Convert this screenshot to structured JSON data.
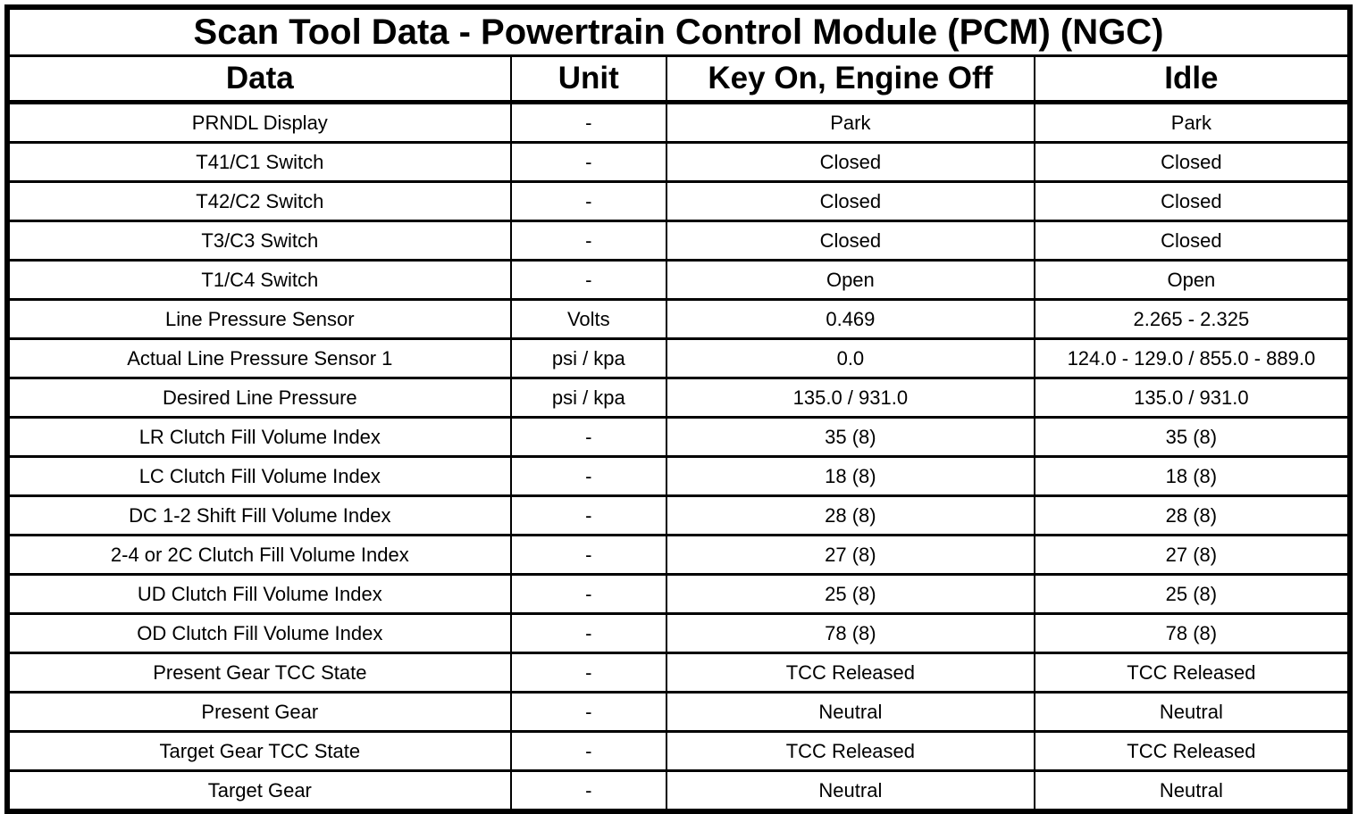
{
  "title": "Scan Tool Data - Powertrain Control Module (PCM) (NGC)",
  "columns": [
    "Data",
    "Unit",
    "Key On, Engine Off",
    "Idle"
  ],
  "rows": [
    {
      "data": "PRNDL Display",
      "unit": "-",
      "key_on_engine_off": "Park",
      "idle": "Park"
    },
    {
      "data": "T41/C1 Switch",
      "unit": "-",
      "key_on_engine_off": "Closed",
      "idle": "Closed"
    },
    {
      "data": "T42/C2 Switch",
      "unit": "-",
      "key_on_engine_off": "Closed",
      "idle": "Closed"
    },
    {
      "data": "T3/C3 Switch",
      "unit": "-",
      "key_on_engine_off": "Closed",
      "idle": "Closed"
    },
    {
      "data": "T1/C4 Switch",
      "unit": "-",
      "key_on_engine_off": "Open",
      "idle": "Open"
    },
    {
      "data": "Line Pressure Sensor",
      "unit": "Volts",
      "key_on_engine_off": "0.469",
      "idle": "2.265 - 2.325"
    },
    {
      "data": "Actual Line Pressure Sensor 1",
      "unit": "psi / kpa",
      "key_on_engine_off": "0.0",
      "idle": "124.0 - 129.0 / 855.0 - 889.0"
    },
    {
      "data": "Desired Line Pressure",
      "unit": "psi / kpa",
      "key_on_engine_off": "135.0 / 931.0",
      "idle": "135.0 / 931.0"
    },
    {
      "data": "LR Clutch Fill Volume Index",
      "unit": "-",
      "key_on_engine_off": "35 (8)",
      "idle": "35 (8)"
    },
    {
      "data": "LC Clutch Fill Volume Index",
      "unit": "-",
      "key_on_engine_off": "18 (8)",
      "idle": "18 (8)"
    },
    {
      "data": "DC 1-2 Shift Fill Volume Index",
      "unit": "-",
      "key_on_engine_off": "28 (8)",
      "idle": "28 (8)"
    },
    {
      "data": "2-4 or 2C Clutch Fill Volume Index",
      "unit": "-",
      "key_on_engine_off": "27 (8)",
      "idle": "27 (8)"
    },
    {
      "data": "UD Clutch Fill Volume Index",
      "unit": "-",
      "key_on_engine_off": "25 (8)",
      "idle": "25 (8)"
    },
    {
      "data": "OD Clutch Fill Volume Index",
      "unit": "-",
      "key_on_engine_off": "78 (8)",
      "idle": "78 (8)"
    },
    {
      "data": "Present Gear TCC State",
      "unit": "-",
      "key_on_engine_off": "TCC Released",
      "idle": "TCC Released"
    },
    {
      "data": "Present Gear",
      "unit": "-",
      "key_on_engine_off": "Neutral",
      "idle": "Neutral"
    },
    {
      "data": "Target Gear TCC State",
      "unit": "-",
      "key_on_engine_off": "TCC Released",
      "idle": "TCC Released"
    },
    {
      "data": "Target Gear",
      "unit": "-",
      "key_on_engine_off": "Neutral",
      "idle": "Neutral"
    }
  ],
  "colors": {
    "border": "#000000",
    "background": "#ffffff",
    "text": "#000000"
  }
}
